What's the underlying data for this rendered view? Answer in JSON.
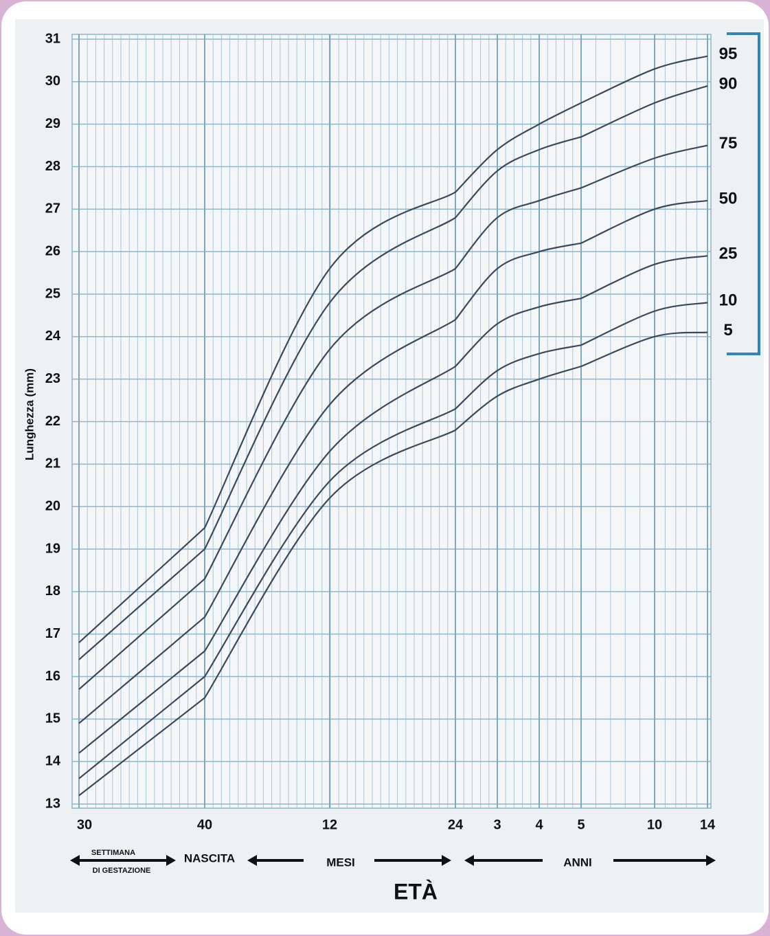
{
  "chart_data": {
    "type": "line",
    "y_label": "Lunghezza (mm)",
    "x_label": "ETÀ",
    "annotations": [
      "SETTIMANA",
      "DI GESTAZIONE",
      "NASCITA",
      "MESI",
      "ANNI"
    ],
    "categories": [
      "30",
      "40",
      "12",
      "24",
      "3",
      "4",
      "5",
      "10",
      "14"
    ],
    "ylim": [
      13,
      31
    ],
    "yticks": [
      13,
      14,
      15,
      16,
      17,
      18,
      19,
      20,
      21,
      22,
      23,
      24,
      25,
      26,
      27,
      28,
      29,
      30,
      31
    ],
    "grid": true,
    "series": [
      {
        "name": "95",
        "color": "#3a4a5c",
        "values": [
          16.8,
          19.5,
          25.6,
          27.4,
          28.4,
          29.0,
          29.5,
          30.3,
          30.6
        ]
      },
      {
        "name": "90",
        "color": "#3a4a5c",
        "values": [
          16.4,
          19.0,
          24.8,
          26.8,
          27.9,
          28.4,
          28.7,
          29.5,
          29.9
        ]
      },
      {
        "name": "75",
        "color": "#3a4a5c",
        "values": [
          15.7,
          18.3,
          23.7,
          25.6,
          26.8,
          27.2,
          27.5,
          28.2,
          28.5
        ]
      },
      {
        "name": "50",
        "color": "#3a4a5c",
        "values": [
          14.9,
          17.4,
          22.4,
          24.4,
          25.6,
          26.0,
          26.2,
          27.0,
          27.2
        ]
      },
      {
        "name": "25",
        "color": "#3a4a5c",
        "values": [
          14.2,
          16.6,
          21.3,
          23.3,
          24.3,
          24.7,
          24.9,
          25.7,
          25.9
        ]
      },
      {
        "name": "10",
        "color": "#3a4a5c",
        "values": [
          13.6,
          16.0,
          20.6,
          22.3,
          23.2,
          23.6,
          23.8,
          24.6,
          24.8
        ]
      },
      {
        "name": "5",
        "color": "#3a4a5c",
        "values": [
          13.2,
          15.5,
          20.2,
          21.8,
          22.6,
          23.0,
          23.3,
          24.0,
          24.1
        ]
      }
    ]
  }
}
